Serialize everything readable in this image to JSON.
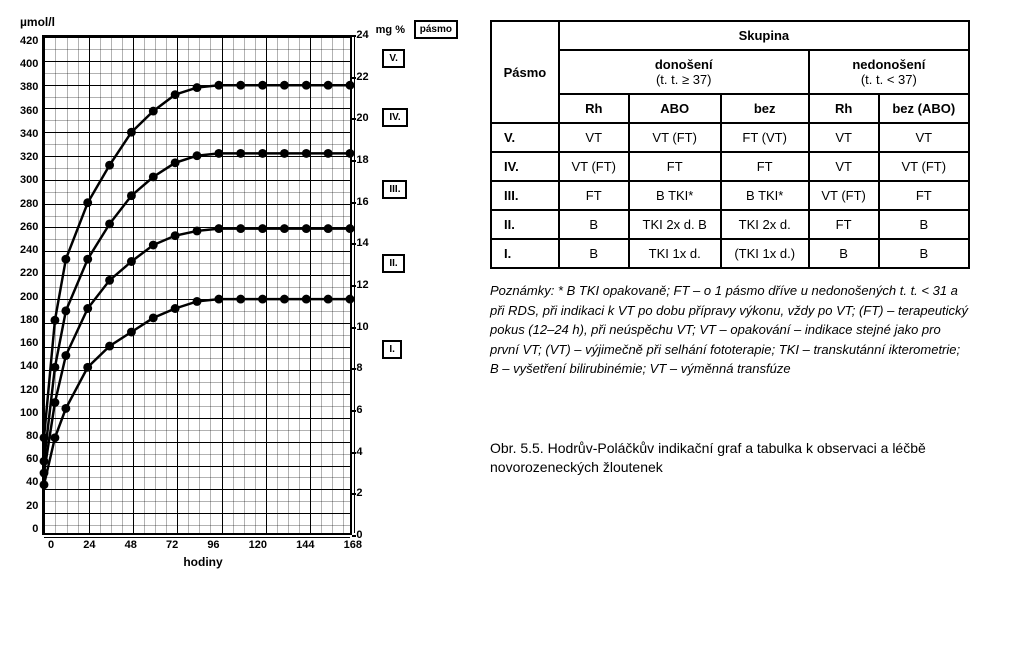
{
  "chart": {
    "type": "line",
    "y_left_label": "µmol/l",
    "y_right_label": "mg %",
    "band_header_label": "pásmo",
    "x_label": "hodiny",
    "x_ticks": [
      0,
      24,
      48,
      72,
      96,
      120,
      144,
      168
    ],
    "x_range": [
      0,
      168
    ],
    "y_left_ticks": [
      420,
      400,
      380,
      360,
      340,
      320,
      300,
      280,
      260,
      240,
      220,
      200,
      180,
      160,
      140,
      120,
      100,
      80,
      60,
      40,
      20,
      0
    ],
    "y_left_range": [
      0,
      420
    ],
    "y_right_ticks": [
      24,
      22,
      20,
      18,
      16,
      14,
      12,
      10,
      8,
      6,
      4,
      2,
      0
    ],
    "y_right_range": [
      0,
      24
    ],
    "bands": [
      {
        "label": "V.",
        "y_at": 400
      },
      {
        "label": "IV.",
        "y_at": 350
      },
      {
        "label": "III.",
        "y_at": 290
      },
      {
        "label": "II.",
        "y_at": 228
      },
      {
        "label": "I.",
        "y_at": 155
      }
    ],
    "minor_div_x": 4,
    "minor_div_y": 2,
    "line_color": "#000000",
    "marker_fill": "#000000",
    "line_width": 2.5,
    "marker_radius": 4.5,
    "background_color": "#ffffff",
    "curves": [
      {
        "name": "curve-v",
        "points": [
          [
            0,
            80
          ],
          [
            6,
            180
          ],
          [
            12,
            232
          ],
          [
            24,
            280
          ],
          [
            36,
            312
          ],
          [
            48,
            340
          ],
          [
            60,
            358
          ],
          [
            72,
            372
          ],
          [
            84,
            378
          ],
          [
            96,
            380
          ],
          [
            108,
            380
          ],
          [
            120,
            380
          ],
          [
            132,
            380
          ],
          [
            144,
            380
          ],
          [
            156,
            380
          ],
          [
            168,
            380
          ]
        ]
      },
      {
        "name": "curve-iv",
        "points": [
          [
            0,
            60
          ],
          [
            6,
            140
          ],
          [
            12,
            188
          ],
          [
            24,
            232
          ],
          [
            36,
            262
          ],
          [
            48,
            286
          ],
          [
            60,
            302
          ],
          [
            72,
            314
          ],
          [
            84,
            320
          ],
          [
            96,
            322
          ],
          [
            108,
            322
          ],
          [
            120,
            322
          ],
          [
            132,
            322
          ],
          [
            144,
            322
          ],
          [
            156,
            322
          ],
          [
            168,
            322
          ]
        ]
      },
      {
        "name": "curve-iii",
        "points": [
          [
            0,
            50
          ],
          [
            6,
            110
          ],
          [
            12,
            150
          ],
          [
            24,
            190
          ],
          [
            36,
            214
          ],
          [
            48,
            230
          ],
          [
            60,
            244
          ],
          [
            72,
            252
          ],
          [
            84,
            256
          ],
          [
            96,
            258
          ],
          [
            108,
            258
          ],
          [
            120,
            258
          ],
          [
            132,
            258
          ],
          [
            144,
            258
          ],
          [
            156,
            258
          ],
          [
            168,
            258
          ]
        ]
      },
      {
        "name": "curve-ii",
        "points": [
          [
            0,
            40
          ],
          [
            6,
            80
          ],
          [
            12,
            105
          ],
          [
            24,
            140
          ],
          [
            36,
            158
          ],
          [
            48,
            170
          ],
          [
            60,
            182
          ],
          [
            72,
            190
          ],
          [
            84,
            196
          ],
          [
            96,
            198
          ],
          [
            108,
            198
          ],
          [
            120,
            198
          ],
          [
            132,
            198
          ],
          [
            144,
            198
          ],
          [
            156,
            198
          ],
          [
            168,
            198
          ]
        ]
      }
    ]
  },
  "table": {
    "header_group": "Skupina",
    "header_pasmo": "Pásmo",
    "header_donoseni": "donošení",
    "header_donoseni_sub": "(t. t. ≥ 37)",
    "header_nedonoseni": "nedonošení",
    "header_nedonoseni_sub": "(t. t. < 37)",
    "cols_don": [
      "Rh",
      "ABO",
      "bez"
    ],
    "cols_nedon": [
      "Rh",
      "bez (ABO)"
    ],
    "rows": [
      {
        "band": "V.",
        "d": [
          "VT",
          "VT (FT)",
          "FT (VT)"
        ],
        "n": [
          "VT",
          "VT"
        ]
      },
      {
        "band": "IV.",
        "d": [
          "VT (FT)",
          "FT",
          "FT"
        ],
        "n": [
          "VT",
          "VT (FT)"
        ]
      },
      {
        "band": "III.",
        "d": [
          "FT",
          "B TKI*",
          "B TKI*"
        ],
        "n": [
          "VT (FT)",
          "FT"
        ]
      },
      {
        "band": "II.",
        "d": [
          "B",
          "TKI 2x d. B",
          "TKI 2x d."
        ],
        "n": [
          "FT",
          "B"
        ]
      },
      {
        "band": "I.",
        "d": [
          "B",
          "TKI 1x d.",
          "(TKI 1x d.)"
        ],
        "n": [
          "B",
          "B"
        ]
      }
    ]
  },
  "notes_lead": "Poznámky:",
  "notes_text": " * B TKI opakovaně; FT – o 1 pásmo dříve u nedonošených t. t. < 31 a při RDS, při indikaci k VT po dobu přípravy výkonu, vždy po VT; (FT) – terapeutický pokus (12–24 h), při neúspěchu VT; VT – opakování – indikace stejné jako pro první VT; (VT) – výjimečně při selhání fototerapie; TKI – transkutánní ikterometrie; B – vyšetření bilirubinémie; VT – výměnná transfúze",
  "caption": "Obr. 5.5. Hodrův-Poláčkův indikační graf a tabulka k observaci a léčbě novorozeneckých žloutenek"
}
